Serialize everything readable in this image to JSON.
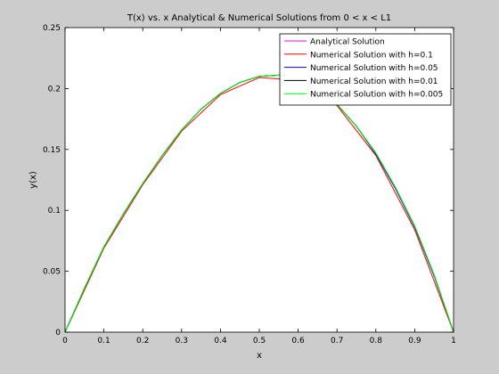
{
  "chart_data": {
    "type": "line",
    "title": "T(x) vs. x Analytical & Numerical Solutions from 0 < x < L1",
    "xlabel": "x",
    "ylabel": "y(x)",
    "xlim": [
      0,
      1
    ],
    "ylim": [
      0,
      0.25
    ],
    "xticks": [
      "0",
      "0.1",
      "0.2",
      "0.3",
      "0.4",
      "0.5",
      "0.6",
      "0.7",
      "0.8",
      "0.9",
      "1"
    ],
    "yticks": [
      "0",
      "0.05",
      "0.1",
      "0.15",
      "0.2",
      "0.25"
    ],
    "grid": false,
    "legend_position": "top-right",
    "series": [
      {
        "name": "Analytical Solution",
        "color": "#ff00ff",
        "x": [
          0,
          0.05,
          0.1,
          0.15,
          0.2,
          0.25,
          0.3,
          0.35,
          0.4,
          0.45,
          0.5,
          0.55,
          0.6,
          0.65,
          0.7,
          0.75,
          0.8,
          0.85,
          0.9,
          0.95,
          1
        ],
        "y": [
          0,
          0.036,
          0.07,
          0.097,
          0.122,
          0.145,
          0.166,
          0.183,
          0.196,
          0.205,
          0.21,
          0.211,
          0.208,
          0.2,
          0.187,
          0.169,
          0.147,
          0.119,
          0.087,
          0.047,
          0
        ]
      },
      {
        "name": "Numerical Solution with h=0.1",
        "color": "#ff0000",
        "x": [
          0,
          0.1,
          0.2,
          0.3,
          0.4,
          0.5,
          0.6,
          0.7,
          0.8,
          0.9,
          1
        ],
        "y": [
          0,
          0.069,
          0.121,
          0.165,
          0.195,
          0.209,
          0.207,
          0.186,
          0.145,
          0.084,
          0
        ]
      },
      {
        "name": "Numerical Solution with h=0.05",
        "color": "#0000ff",
        "x": [
          0,
          0.05,
          0.1,
          0.15,
          0.2,
          0.25,
          0.3,
          0.35,
          0.4,
          0.45,
          0.5,
          0.55,
          0.6,
          0.65,
          0.7,
          0.75,
          0.8,
          0.85,
          0.9,
          0.95,
          1
        ],
        "y": [
          0,
          0.036,
          0.07,
          0.097,
          0.122,
          0.145,
          0.166,
          0.183,
          0.196,
          0.205,
          0.21,
          0.211,
          0.208,
          0.2,
          0.187,
          0.169,
          0.146,
          0.118,
          0.086,
          0.046,
          0
        ]
      },
      {
        "name": "Numerical Solution with h=0.01",
        "color": "#000000",
        "x": [
          0,
          0.05,
          0.1,
          0.15,
          0.2,
          0.25,
          0.3,
          0.35,
          0.4,
          0.45,
          0.5,
          0.55,
          0.6,
          0.65,
          0.7,
          0.75,
          0.8,
          0.85,
          0.9,
          0.95,
          1
        ],
        "y": [
          0,
          0.036,
          0.07,
          0.097,
          0.122,
          0.145,
          0.166,
          0.183,
          0.196,
          0.205,
          0.21,
          0.211,
          0.208,
          0.2,
          0.187,
          0.169,
          0.147,
          0.119,
          0.087,
          0.047,
          0
        ]
      },
      {
        "name": "Numerical Solution with h=0.005",
        "color": "#00ff00",
        "x": [
          0,
          0.05,
          0.1,
          0.15,
          0.2,
          0.25,
          0.3,
          0.35,
          0.4,
          0.45,
          0.5,
          0.55,
          0.6,
          0.65,
          0.7,
          0.75,
          0.8,
          0.85,
          0.9,
          0.95,
          1
        ],
        "y": [
          0,
          0.036,
          0.07,
          0.097,
          0.122,
          0.145,
          0.166,
          0.183,
          0.196,
          0.205,
          0.21,
          0.211,
          0.208,
          0.2,
          0.187,
          0.169,
          0.147,
          0.119,
          0.087,
          0.047,
          0
        ]
      }
    ]
  }
}
